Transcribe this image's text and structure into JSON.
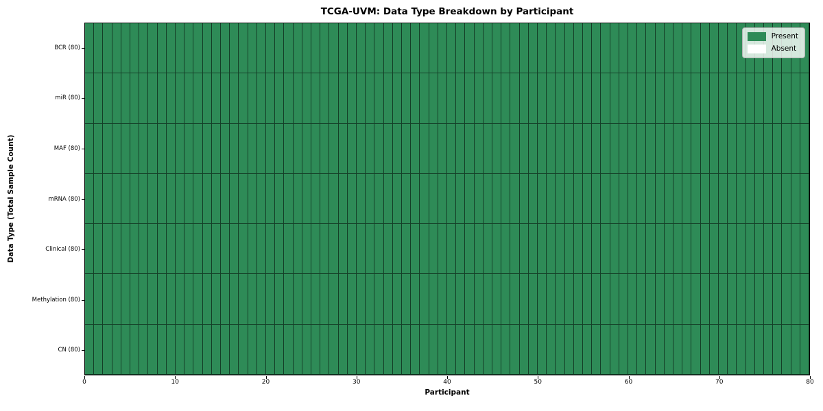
{
  "title": "TCGA-UVM: Data Type Breakdown by Participant",
  "chart_data": {
    "type": "heatmap",
    "title": "TCGA-UVM: Data Type Breakdown by Participant",
    "xlabel": "Participant",
    "ylabel": "Data Type (Total Sample Count)",
    "x_ticks": [
      0,
      10,
      20,
      30,
      40,
      50,
      60,
      70,
      80
    ],
    "xlim": [
      0,
      80
    ],
    "n_participants": 80,
    "rows": [
      {
        "label": "BCR (80)",
        "present": 80
      },
      {
        "label": "miR (80)",
        "present": 80
      },
      {
        "label": "MAF (80)",
        "present": 80
      },
      {
        "label": "mRNA (80)",
        "present": 80
      },
      {
        "label": "Clinical (80)",
        "present": 80
      },
      {
        "label": "Methylation (80)",
        "present": 80
      },
      {
        "label": "CN (80)",
        "present": 80
      }
    ],
    "legend": [
      {
        "label": "Present",
        "color": "#2e8b57"
      },
      {
        "label": "Absent",
        "color": "#ffffff"
      }
    ],
    "legend_position": "upper right",
    "grid": false,
    "colors": {
      "present": "#2e8b57",
      "absent": "#ffffff",
      "cell_border": "rgba(0,0,0,0.55)",
      "spine": "#000000"
    }
  }
}
